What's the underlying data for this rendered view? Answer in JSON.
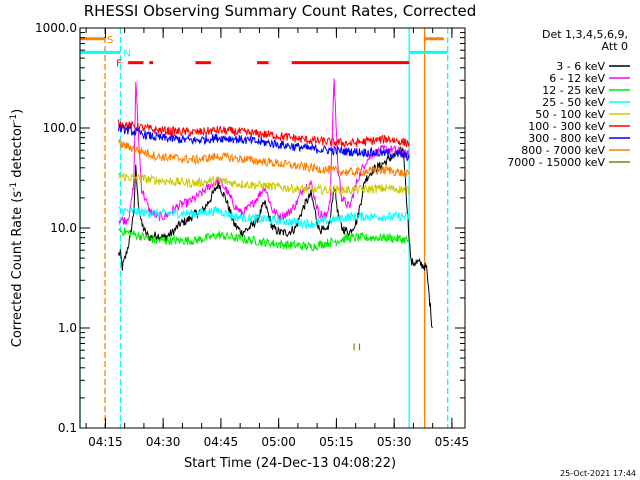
{
  "chart_data": {
    "type": "line",
    "title": "RHESSI Observing Summary Count Rates, Corrected",
    "xlabel": "Start Time (24-Dec-13 04:08:22)",
    "ylabel_main": "Corrected Count Rate (s",
    "ylabel_sup1": "-1",
    "ylabel_mid": " detector",
    "ylabel_sup2": "-1",
    "ylabel_end": ")",
    "yscale": "log",
    "ylim": [
      0.1,
      1000
    ],
    "xlim_minutes": [
      0,
      100
    ],
    "y_ticks": [
      {
        "value": 0.1,
        "label": "0.1"
      },
      {
        "value": 1,
        "label": "1.0"
      },
      {
        "value": 10,
        "label": "10.0"
      },
      {
        "value": 100,
        "label": "100.0"
      },
      {
        "value": 1000,
        "label": "1000.0"
      }
    ],
    "x_ticks": [
      {
        "minute": 6.6,
        "label": "04:15"
      },
      {
        "minute": 21.6,
        "label": "04:30"
      },
      {
        "minute": 36.6,
        "label": "04:45"
      },
      {
        "minute": 51.6,
        "label": "05:00"
      },
      {
        "minute": 66.6,
        "label": "05:15"
      },
      {
        "minute": 81.6,
        "label": "05:30"
      },
      {
        "minute": 96.6,
        "label": "05:45"
      }
    ],
    "legend_header": [
      "Det 1,3,4,5,6,9,",
      "Att 0"
    ],
    "series": [
      {
        "name": "3 - 6 keV",
        "color": "#000000",
        "x": [
          10,
          10.5,
          11,
          12,
          13,
          14,
          14.5,
          15,
          16,
          17,
          18,
          20,
          22,
          24,
          26,
          28,
          30,
          32,
          34,
          36,
          38,
          40,
          42,
          44,
          46,
          48,
          50,
          52,
          54,
          56,
          58,
          60,
          62,
          64,
          65,
          66,
          67,
          68,
          70,
          72,
          74,
          76,
          78,
          80,
          82,
          84,
          85.5,
          86,
          88,
          90,
          91.5
        ],
        "values": [
          5.5,
          5.5,
          4,
          5.5,
          8,
          15,
          40,
          20,
          11,
          9,
          8,
          8.5,
          8,
          9,
          11,
          12,
          14,
          15,
          20,
          28,
          19,
          11,
          9,
          10,
          12,
          18,
          10,
          9,
          9,
          10,
          16,
          22,
          10,
          9,
          12,
          28,
          14,
          10,
          9,
          12,
          30,
          38,
          42,
          48,
          55,
          60,
          8,
          4.5,
          4.5,
          4,
          1
        ]
      },
      {
        "name": "6 - 12 keV",
        "color": "#ff00ff",
        "x": [
          10,
          12,
          13,
          14,
          14.5,
          15,
          16,
          18,
          20,
          22,
          24,
          26,
          28,
          30,
          32,
          34,
          36,
          38,
          40,
          42,
          44,
          46,
          48,
          50,
          52,
          54,
          56,
          58,
          60,
          62,
          64,
          65,
          66,
          67,
          68,
          70,
          72,
          74,
          76,
          78,
          80,
          82,
          84,
          85.5
        ],
        "values": [
          12,
          12,
          14,
          30,
          300,
          110,
          25,
          15,
          13,
          13,
          15,
          17,
          18,
          20,
          23,
          27,
          30,
          24,
          17,
          14,
          16,
          20,
          26,
          15,
          13,
          14,
          17,
          25,
          28,
          14,
          13,
          20,
          320,
          40,
          20,
          16,
          30,
          45,
          55,
          60,
          62,
          60,
          55,
          54
        ]
      },
      {
        "name": "12 - 25 keV",
        "color": "#00ee00",
        "x": [
          10,
          20,
          30,
          36,
          40,
          50,
          60,
          70,
          80,
          85.5
        ],
        "values": [
          9.5,
          7.5,
          7.5,
          8.5,
          8,
          7,
          6.5,
          8,
          8,
          7.5
        ]
      },
      {
        "name": "25 - 50 keV",
        "color": "#00ffff",
        "x": [
          10,
          20,
          30,
          36,
          40,
          50,
          60,
          70,
          80,
          85.5
        ],
        "values": [
          15,
          14,
          14,
          15,
          13,
          12,
          11,
          13,
          13,
          13
        ]
      },
      {
        "name": "50 - 100 keV",
        "color": "#cccc00",
        "x": [
          10,
          20,
          30,
          36,
          40,
          50,
          60,
          70,
          80,
          85.5
        ],
        "values": [
          33,
          30,
          28,
          30,
          28,
          26,
          24,
          24,
          25,
          24
        ]
      },
      {
        "name": "100 - 300 keV",
        "color": "#ff0000",
        "x": [
          10,
          20,
          30,
          36,
          40,
          50,
          60,
          70,
          80,
          85.5
        ],
        "values": [
          110,
          95,
          90,
          95,
          92,
          85,
          75,
          70,
          78,
          70
        ]
      },
      {
        "name": "300 - 800 keV",
        "color": "#0000ff",
        "x": [
          10,
          20,
          30,
          36,
          40,
          50,
          60,
          70,
          80,
          85.5
        ],
        "values": [
          100,
          80,
          75,
          80,
          78,
          70,
          62,
          58,
          56,
          52
        ]
      },
      {
        "name": "800 - 7000 keV",
        "color": "#ff8000",
        "x": [
          10,
          20,
          30,
          36,
          40,
          50,
          60,
          70,
          80,
          85.5
        ],
        "values": [
          70,
          52,
          48,
          52,
          50,
          45,
          40,
          36,
          38,
          34
        ]
      },
      {
        "name": "7000 - 15000 keV",
        "color": "#808000",
        "x": [
          71.2,
          71.2,
          72.6,
          72.6
        ],
        "values": [
          0.6,
          0.7,
          0.6,
          0.7
        ]
      }
    ],
    "flag_bars": [
      {
        "name": "S",
        "color": "#ff8000",
        "segments": [
          [
            0,
            6.5
          ],
          [
            89.5,
            94.5
          ]
        ],
        "level": 780
      },
      {
        "name": "N",
        "color": "#00ffff",
        "segments": [
          [
            0,
            10.5
          ],
          [
            85.5,
            95.5
          ]
        ],
        "level": 570
      },
      {
        "name": "F",
        "color": "#ff0000",
        "segments": [
          [
            12.5,
            16.5
          ],
          [
            18,
            19
          ],
          [
            30,
            34
          ],
          [
            46,
            49
          ],
          [
            55,
            85.5
          ]
        ],
        "level": 450
      }
    ],
    "vertical_lines": [
      {
        "minute": 0,
        "color": "#00ffff",
        "style": "solid"
      },
      {
        "minute": 6.5,
        "color": "#ff8000",
        "style": "dashed"
      },
      {
        "minute": 10.5,
        "color": "#00ffff",
        "style": "dashed"
      },
      {
        "minute": 85.5,
        "color": "#00ffff",
        "style": "solid"
      },
      {
        "minute": 89.5,
        "color": "#ff8000",
        "style": "solid"
      },
      {
        "minute": 95.5,
        "color": "#00ffff",
        "style": "dashed"
      }
    ],
    "footer": "25-Oct-2021 17:44"
  }
}
